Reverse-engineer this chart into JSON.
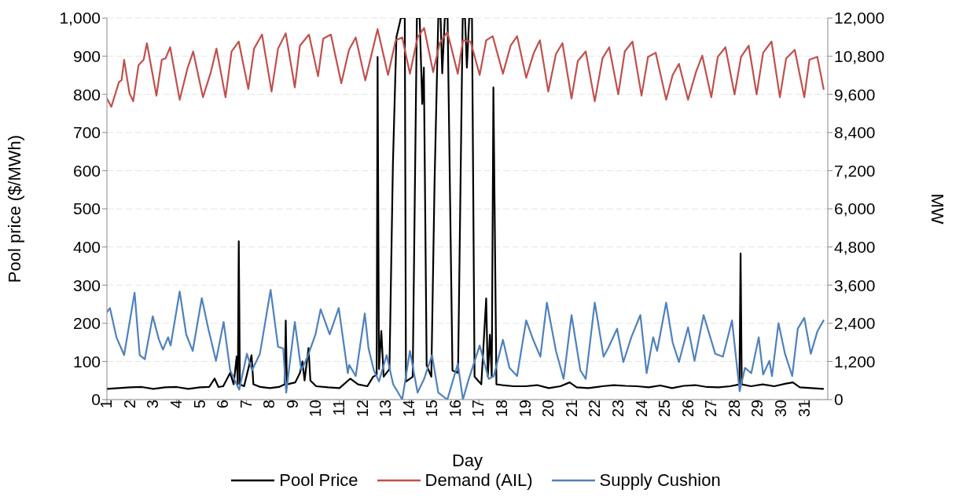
{
  "chart_data": {
    "type": "line",
    "xlabel": "Day",
    "ylabel": "Pool price ($/MWh)",
    "y2label": "MW",
    "xlim": [
      1,
      32
    ],
    "xticks": [
      1,
      2,
      3,
      4,
      5,
      6,
      7,
      8,
      9,
      10,
      11,
      12,
      13,
      14,
      15,
      16,
      17,
      18,
      19,
      20,
      21,
      22,
      23,
      24,
      25,
      26,
      27,
      28,
      29,
      30,
      31
    ],
    "ylim": [
      0,
      1000
    ],
    "yticks": [
      0,
      100,
      200,
      300,
      400,
      500,
      600,
      700,
      800,
      900,
      {
        "value": 1000,
        "label": "1,000"
      }
    ],
    "y2lim": [
      0,
      12000
    ],
    "y2ticks": [
      0,
      {
        "value": 1200,
        "label": "1,200"
      },
      {
        "value": 2400,
        "label": "2,400"
      },
      {
        "value": 3600,
        "label": "3,600"
      },
      {
        "value": 4800,
        "label": "4,800"
      },
      {
        "value": 6000,
        "label": "6,000"
      },
      {
        "value": 7200,
        "label": "7,200"
      },
      {
        "value": 8400,
        "label": "8,400"
      },
      {
        "value": 9600,
        "label": "9,600"
      },
      {
        "value": 10800,
        "label": "10,800"
      },
      {
        "value": 12000,
        "label": "12,000"
      }
    ],
    "grid": "y",
    "legend": "bottom",
    "marker": "none",
    "line_style": "solid",
    "series": [
      {
        "name": "Pool Price",
        "color": "#000000",
        "x": [
          1.0,
          1.5,
          2.0,
          2.5,
          3.0,
          3.5,
          4.0,
          4.5,
          5.0,
          5.4,
          5.63,
          5.8,
          6.0,
          6.3,
          6.45,
          6.58,
          6.63,
          6.67,
          6.72,
          6.9,
          7.22,
          7.3,
          7.6,
          8.0,
          8.4,
          8.65,
          8.69,
          8.74,
          9.1,
          9.3,
          9.41,
          9.5,
          9.67,
          9.75,
          10.0,
          10.5,
          11.0,
          11.47,
          11.8,
          12.2,
          12.45,
          12.6,
          12.64,
          12.7,
          12.8,
          12.9,
          13.15,
          13.3,
          13.45,
          13.64,
          13.81,
          13.86,
          14.15,
          14.33,
          14.45,
          14.56,
          14.63,
          14.75,
          14.95,
          15.09,
          15.25,
          15.35,
          15.42,
          15.53,
          15.65,
          15.86,
          16.1,
          16.3,
          16.4,
          16.48,
          16.58,
          16.7,
          16.81,
          17.1,
          17.31,
          17.38,
          17.47,
          17.55,
          17.62,
          17.75,
          18.0,
          18.5,
          19.0,
          19.5,
          20.0,
          20.5,
          20.9,
          21.2,
          21.7,
          22.3,
          22.8,
          23.3,
          23.8,
          24.3,
          24.8,
          25.3,
          25.8,
          26.3,
          26.8,
          27.3,
          27.8,
          28.2,
          28.25,
          28.3,
          28.7,
          29.2,
          29.7,
          30.2,
          30.5,
          30.8,
          31.3,
          31.8
        ],
        "values": [
          28,
          30,
          32,
          33,
          28,
          32,
          33,
          28,
          32,
          33,
          55,
          33,
          35,
          70,
          40,
          113,
          40,
          415,
          40,
          35,
          116,
          40,
          33,
          30,
          33,
          40,
          207,
          40,
          45,
          70,
          100,
          50,
          135,
          50,
          35,
          32,
          30,
          55,
          40,
          35,
          60,
          65,
          898,
          80,
          180,
          60,
          80,
          620,
          950,
          1000,
          1000,
          47,
          60,
          1000,
          1000,
          775,
          870,
          90,
          60,
          570,
          1000,
          1000,
          855,
          1000,
          1000,
          76,
          70,
          1000,
          1000,
          870,
          1000,
          1000,
          60,
          40,
          265,
          60,
          170,
          60,
          818,
          40,
          38,
          35,
          35,
          38,
          30,
          35,
          45,
          32,
          30,
          35,
          38,
          36,
          35,
          32,
          37,
          30,
          36,
          38,
          33,
          32,
          35,
          40,
          383,
          40,
          35,
          40,
          35,
          42,
          45,
          32,
          30,
          28
        ]
      },
      {
        "name": "Demand (AIL)",
        "color": "#c0504d",
        "axis": "y2",
        "x": [
          1.0,
          1.19,
          1.52,
          1.63,
          1.74,
          1.97,
          2.13,
          2.36,
          2.58,
          2.72,
          3.13,
          3.36,
          3.52,
          3.72,
          4.13,
          4.47,
          4.71,
          5.13,
          5.47,
          5.71,
          6.1,
          6.36,
          6.67,
          7.08,
          7.33,
          7.67,
          8.08,
          8.36,
          8.69,
          9.08,
          9.3,
          9.69,
          10.08,
          10.3,
          10.63,
          11.08,
          11.41,
          11.7,
          12.11,
          12.64,
          13.09,
          13.42,
          13.7,
          14.03,
          14.36,
          14.64,
          15.03,
          15.31,
          15.64,
          16.09,
          16.31,
          16.64,
          17.03,
          17.31,
          17.59,
          18.03,
          18.36,
          18.64,
          19.03,
          19.36,
          19.62,
          19.98,
          20.31,
          20.59,
          20.98,
          21.25,
          21.59,
          21.98,
          22.31,
          22.6,
          22.99,
          23.27,
          23.6,
          23.99,
          24.27,
          24.6,
          25.05,
          25.33,
          25.6,
          25.99,
          26.33,
          26.6,
          26.99,
          27.27,
          27.6,
          27.99,
          28.27,
          28.6,
          28.94,
          29.22,
          29.58,
          29.94,
          30.21,
          30.58,
          30.99,
          31.21,
          31.55,
          31.82
        ],
        "values": [
          9470,
          9210,
          9990,
          10040,
          10690,
          9640,
          9380,
          10520,
          10690,
          11210,
          9560,
          10690,
          10730,
          11080,
          9430,
          10430,
          10950,
          9510,
          10300,
          11040,
          9510,
          10950,
          11260,
          9770,
          11040,
          11480,
          9690,
          11040,
          11520,
          9820,
          11130,
          11480,
          10170,
          11350,
          11480,
          9950,
          11000,
          11390,
          10040,
          11650,
          10210,
          11300,
          11390,
          10250,
          11390,
          11690,
          10300,
          11210,
          11560,
          10250,
          11300,
          11260,
          10210,
          11300,
          11430,
          10250,
          11130,
          11430,
          10120,
          10910,
          11300,
          9690,
          10870,
          11210,
          9470,
          10650,
          10950,
          9380,
          10730,
          11080,
          9600,
          10950,
          11260,
          9560,
          10780,
          10910,
          9430,
          10210,
          10560,
          9430,
          10300,
          10820,
          9510,
          10780,
          11080,
          9600,
          10780,
          11130,
          9600,
          10910,
          11260,
          9510,
          10730,
          11000,
          9510,
          10690,
          10780,
          9770
        ]
      },
      {
        "name": "Supply Cushion",
        "color": "#4f81bd",
        "axis": "y2",
        "x": [
          1.0,
          1.13,
          1.41,
          1.74,
          2.19,
          2.41,
          2.63,
          2.97,
          3.24,
          3.41,
          3.63,
          3.74,
          4.13,
          4.41,
          4.69,
          5.08,
          5.36,
          5.69,
          6.02,
          6.3,
          6.69,
          7.02,
          7.24,
          7.58,
          8.04,
          8.36,
          8.58,
          8.71,
          9.08,
          9.36,
          9.63,
          9.97,
          10.19,
          10.58,
          10.97,
          11.36,
          11.42,
          11.7,
          12.09,
          12.25,
          12.48,
          12.7,
          13.03,
          13.31,
          13.7,
          14.03,
          14.36,
          14.64,
          14.98,
          15.25,
          15.64,
          16.09,
          16.31,
          16.53,
          17.03,
          17.42,
          17.64,
          18.03,
          18.31,
          18.64,
          19.03,
          19.31,
          19.64,
          19.92,
          20.31,
          20.64,
          20.98,
          21.36,
          21.59,
          21.98,
          22.36,
          22.55,
          22.94,
          23.21,
          23.55,
          23.94,
          24.21,
          24.49,
          24.66,
          25.05,
          25.33,
          25.6,
          25.99,
          26.27,
          26.66,
          27.16,
          27.49,
          27.88,
          28.21,
          28.44,
          28.71,
          29.03,
          29.22,
          29.49,
          29.6,
          29.88,
          30.16,
          30.47,
          30.71,
          30.99,
          31.27,
          31.55,
          31.82
        ],
        "values": [
          2750,
          2880,
          1960,
          1400,
          3360,
          1400,
          1270,
          2620,
          1880,
          1570,
          1960,
          1700,
          3400,
          2050,
          1530,
          3190,
          2230,
          1220,
          2440,
          920,
          310,
          1440,
          920,
          1440,
          3450,
          1660,
          1610,
          220,
          2440,
          920,
          1350,
          2050,
          2840,
          2050,
          2880,
          830,
          1090,
          740,
          2710,
          1610,
          920,
          570,
          1400,
          480,
          0,
          1530,
          220,
          650,
          1400,
          220,
          0,
          1130,
          0,
          570,
          1700,
          650,
          740,
          1880,
          1000,
          740,
          2490,
          1920,
          1350,
          3050,
          1530,
          650,
          2660,
          920,
          650,
          3050,
          1350,
          1610,
          2230,
          1180,
          1960,
          2660,
          830,
          1960,
          1530,
          3050,
          1790,
          1180,
          2270,
          1220,
          2660,
          1440,
          1350,
          2490,
          260,
          1000,
          830,
          1960,
          790,
          1220,
          740,
          2400,
          1440,
          740,
          2230,
          2570,
          1440,
          2140,
          2490
        ]
      }
    ]
  }
}
